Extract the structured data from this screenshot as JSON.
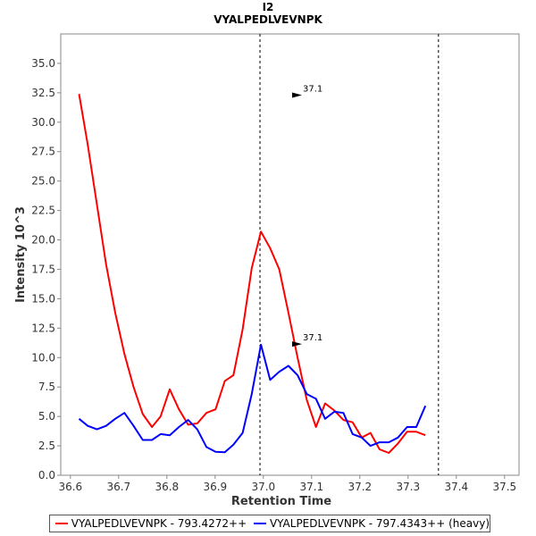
{
  "chart_data": {
    "type": "line",
    "title": "I2",
    "subtitle": "VYALPEDLVEVNPK",
    "xlabel": "Retention Time",
    "ylabel": "Intensity 10^3",
    "xlim": [
      36.58,
      37.53
    ],
    "ylim": [
      0,
      37.5
    ],
    "xticks": [
      "36.6",
      "36.7",
      "36.8",
      "36.9",
      "37.0",
      "37.1",
      "37.2",
      "37.3",
      "37.4",
      "37.5"
    ],
    "yticks": [
      "0.0",
      "2.5",
      "5.0",
      "7.5",
      "10.0",
      "12.5",
      "15.0",
      "17.5",
      "20.0",
      "22.5",
      "25.0",
      "27.5",
      "30.0",
      "32.5",
      "35.0"
    ],
    "vlines": [
      36.993,
      37.363
    ],
    "grid": false,
    "legend": "bottom",
    "series": [
      {
        "name": "VYALPEDLVEVNPK - 793.4272++",
        "color": "#ff0000",
        "x": [
          36.618,
          36.636,
          36.655,
          36.674,
          36.693,
          36.712,
          36.731,
          36.75,
          36.769,
          36.787,
          36.806,
          36.825,
          36.844,
          36.863,
          36.882,
          36.901,
          36.92,
          36.938,
          36.957,
          36.976,
          36.995,
          37.014,
          37.033,
          37.052,
          37.071,
          37.09,
          37.109,
          37.128,
          37.147,
          37.166,
          37.185,
          37.204,
          37.222,
          37.241,
          37.26,
          37.279,
          37.298,
          37.317,
          37.336,
          37.355,
          37.374,
          37.393,
          37.412,
          37.43,
          37.449,
          37.468,
          37.487
        ],
        "y": [
          32.4,
          28.1,
          23.0,
          17.9,
          13.8,
          10.3,
          7.5,
          5.2,
          4.1,
          5.0,
          7.3,
          5.6,
          4.3,
          4.4,
          5.3,
          5.6,
          8.0,
          8.5,
          12.4,
          17.6,
          20.7,
          19.3,
          17.5,
          13.8,
          10.0,
          6.4,
          4.1,
          6.1,
          5.5,
          4.7,
          4.5,
          3.2,
          3.6,
          2.2,
          1.9,
          2.7,
          3.7,
          3.7,
          3.4,
          null,
          null,
          null,
          null,
          null,
          null,
          null,
          null
        ]
      },
      {
        "name": "VYALPEDLVEVNPK - 797.4343++ (heavy)",
        "color": "#0000ff",
        "x": [
          36.618,
          36.636,
          36.655,
          36.674,
          36.693,
          36.712,
          36.731,
          36.75,
          36.769,
          36.787,
          36.806,
          36.825,
          36.844,
          36.863,
          36.882,
          36.901,
          36.92,
          36.938,
          36.957,
          36.976,
          36.995,
          37.014,
          37.033,
          37.052,
          37.071,
          37.09,
          37.109,
          37.128,
          37.147,
          37.166,
          37.185,
          37.204,
          37.222,
          37.241,
          37.26,
          37.279,
          37.298,
          37.317,
          37.336,
          37.355,
          37.374,
          37.393,
          37.412,
          37.43,
          37.449,
          37.468,
          37.487
        ],
        "y": [
          4.8,
          4.2,
          3.9,
          4.2,
          4.8,
          5.3,
          4.2,
          3.0,
          3.0,
          3.5,
          3.4,
          4.1,
          4.7,
          3.9,
          2.4,
          2.0,
          1.95,
          2.6,
          3.6,
          6.9,
          11.1,
          8.1,
          8.8,
          9.3,
          8.5,
          6.9,
          6.5,
          4.8,
          5.4,
          5.3,
          3.5,
          3.2,
          2.5,
          2.8,
          2.8,
          3.2,
          4.1,
          4.1,
          5.9,
          null,
          null,
          null,
          null,
          null,
          null,
          null,
          null
        ]
      }
    ],
    "annotations": [
      {
        "text": "37.1",
        "x": 37.08,
        "y": 32.3,
        "color": "#cc0000"
      },
      {
        "text": "37.1",
        "x": 37.08,
        "y": 11.15,
        "color": "#0000cc"
      }
    ]
  }
}
